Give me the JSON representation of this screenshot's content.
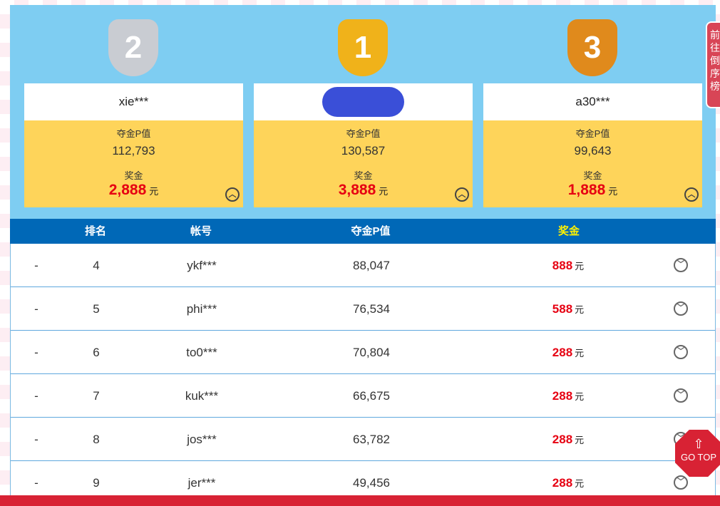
{
  "podium": [
    {
      "rank": "2",
      "name": "xie***",
      "value_label": "夺金P值",
      "value": "112,793",
      "prize_label": "奖金",
      "prize": "2,888",
      "unit": "元",
      "color": "#c9ccd2"
    },
    {
      "rank": "1",
      "name": "",
      "value_label": "夺金P值",
      "value": "130,587",
      "prize_label": "奖金",
      "prize": "3,888",
      "unit": "元",
      "color": "#f0b21a"
    },
    {
      "rank": "3",
      "name": "a30***",
      "value_label": "夺金P值",
      "value": "99,643",
      "prize_label": "奖金",
      "prize": "1,888",
      "unit": "元",
      "color": "#e08a1c"
    }
  ],
  "table": {
    "headers": [
      "排名",
      "帐号",
      "夺金P值",
      "奖金"
    ],
    "rows": [
      {
        "change": "-",
        "rank": "4",
        "account": "ykf***",
        "value": "88,047",
        "prize": "888",
        "unit": "元"
      },
      {
        "change": "-",
        "rank": "5",
        "account": "phi***",
        "value": "76,534",
        "prize": "588",
        "unit": "元"
      },
      {
        "change": "-",
        "rank": "6",
        "account": "to0***",
        "value": "70,804",
        "prize": "288",
        "unit": "元"
      },
      {
        "change": "-",
        "rank": "7",
        "account": "kuk***",
        "value": "66,675",
        "prize": "288",
        "unit": "元"
      },
      {
        "change": "-",
        "rank": "8",
        "account": "jos***",
        "value": "63,782",
        "prize": "288",
        "unit": "元"
      },
      {
        "change": "-",
        "rank": "9",
        "account": "jer***",
        "value": "49,456",
        "prize": "288",
        "unit": "元"
      }
    ]
  },
  "side_tab": "前往倒序榜",
  "go_top": "GO TOP"
}
